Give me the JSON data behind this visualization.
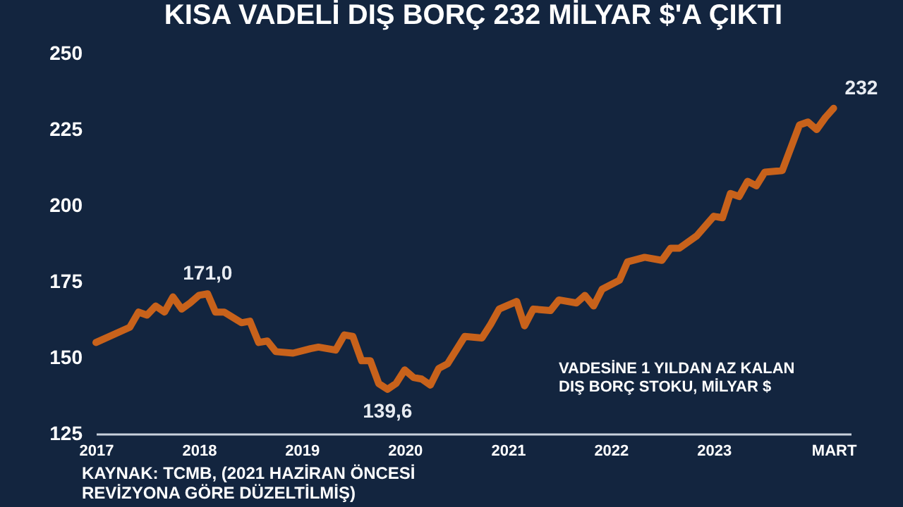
{
  "chart_data": {
    "type": "line",
    "title": "KISA VADELİ DIŞ BORÇ 232 MİLYAR $'A ÇIKTI",
    "x": [
      "2017-01",
      "2017-05",
      "2017-06",
      "2017-07",
      "2017-08",
      "2017-09",
      "2017-10",
      "2017-11",
      "2017-12",
      "2018-01",
      "2018-02",
      "2018-03",
      "2018-04",
      "2018-06",
      "2018-07",
      "2018-08",
      "2018-09",
      "2018-10",
      "2018-12",
      "2019-02",
      "2019-03",
      "2019-05",
      "2019-06",
      "2019-07",
      "2019-08",
      "2019-09",
      "2019-10",
      "2019-11",
      "2019-12",
      "2020-01",
      "2020-02",
      "2020-03",
      "2020-04",
      "2020-05",
      "2020-06",
      "2020-08",
      "2020-10",
      "2020-11",
      "2020-12",
      "2021-02",
      "2021-03",
      "2021-04",
      "2021-06",
      "2021-07",
      "2021-09",
      "2021-10",
      "2021-11",
      "2021-12",
      "2022-02",
      "2022-03",
      "2022-05",
      "2022-07",
      "2022-08",
      "2022-09",
      "2022-11",
      "2023-01",
      "2023-02",
      "2023-03",
      "2023-04",
      "2023-05",
      "2023-06",
      "2023-07",
      "2023-09",
      "2023-11",
      "2023-12",
      "2024-01",
      "2024-02",
      "2024-03"
    ],
    "series": [
      {
        "color": "#c8621b",
        "values": [
          155,
          160,
          165,
          164,
          167,
          165,
          170,
          166,
          168,
          170.5,
          171.0,
          165,
          165,
          161.5,
          162,
          155,
          155.5,
          152,
          151.5,
          153,
          153.5,
          152.5,
          157.5,
          157,
          149,
          149,
          141.5,
          139.6,
          141.5,
          146,
          143.5,
          143,
          141,
          146.5,
          148,
          157,
          156.5,
          161,
          166,
          168.5,
          160.5,
          166,
          165.5,
          169,
          168,
          170.5,
          167,
          172.5,
          175.5,
          181.5,
          183,
          182,
          186,
          186,
          190,
          196.5,
          196,
          204,
          203,
          208,
          206.5,
          211,
          211.5,
          226.5,
          227.5,
          225,
          229,
          232
        ]
      }
    ],
    "xlim": [
      "2017-01",
      "2024-05"
    ],
    "xticks": [
      {
        "value": "2017-01",
        "label": "2017"
      },
      {
        "value": "2018-01",
        "label": "2018"
      },
      {
        "value": "2019-01",
        "label": "2019"
      },
      {
        "value": "2020-01",
        "label": "2020"
      },
      {
        "value": "2021-01",
        "label": "2021"
      },
      {
        "value": "2022-01",
        "label": "2022"
      },
      {
        "value": "2023-01",
        "label": "2023"
      },
      {
        "value": "2024-03",
        "label": "MART"
      }
    ],
    "ylim": [
      125,
      250
    ],
    "yticks": [
      125,
      150,
      175,
      200,
      225,
      250
    ],
    "grid": false,
    "legend": false,
    "annotations": [
      "KAYNAK: TCMB, (2021 HAZİRAN ÖNCESİ REVİZYONA GÖRE DÜZELTİLMİŞ)",
      "VADESİNE 1 YILDAN AZ KALAN DIŞ BORÇ STOKU, MİLYAR $",
      {
        "text": "171,0",
        "x": "2018-02",
        "y": 171.0
      },
      {
        "text": "139,6",
        "x": "2019-11",
        "y": 139.6
      },
      {
        "text": "232",
        "x": "2024-03",
        "y": 232
      }
    ]
  }
}
